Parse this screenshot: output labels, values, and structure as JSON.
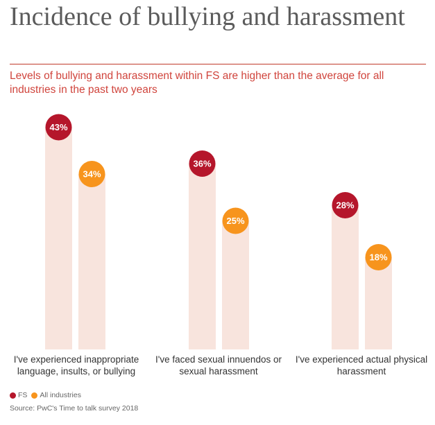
{
  "title": "Incidence of bullying and harassment",
  "subtitle": "Levels of bullying and harassment within FS are higher than the average for all industries in the past two years",
  "colors": {
    "fs": "#b5162b",
    "all_industries": "#f7941d",
    "bar": "#f8e4dd",
    "title": "#5b5b5b",
    "accent": "#d0443c"
  },
  "chart_data": {
    "type": "bar",
    "categories": [
      [
        "I've experienced inappropriate",
        "language, insults, or bullying"
      ],
      [
        "I've faced sexual innuendos or",
        "sexual harassment"
      ],
      [
        "I've experienced actual physical",
        "harassment"
      ]
    ],
    "series": [
      {
        "name": "FS",
        "values": [
          43,
          36,
          28
        ],
        "labels": [
          "43%",
          "36%",
          "28%"
        ]
      },
      {
        "name": "All industries",
        "values": [
          34,
          25,
          18
        ],
        "labels": [
          "34%",
          "25%",
          "18%"
        ]
      }
    ],
    "legend": "bottom-left",
    "grid": false
  },
  "legend": {
    "fs": "FS",
    "all_industries": "All industries"
  },
  "source": "Source: PwC's Time to talk survey 2018"
}
